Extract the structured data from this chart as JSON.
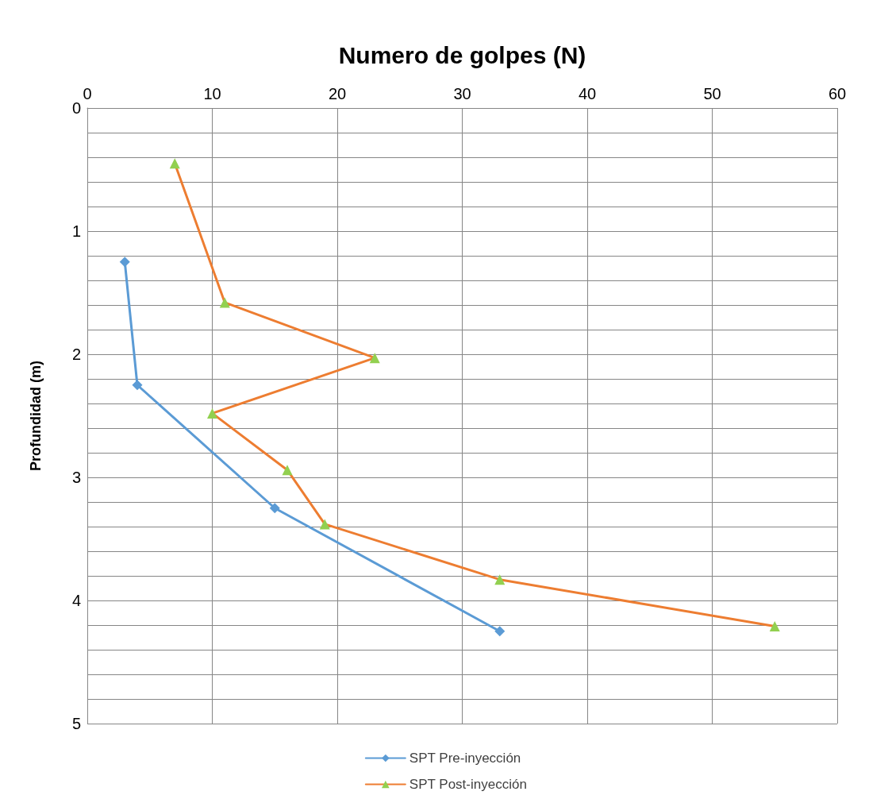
{
  "chart_data": {
    "type": "line",
    "xlabel": "Numero de golpes (N)",
    "ylabel": "Profundidad (m)",
    "xlim": [
      0,
      60
    ],
    "xticks": [
      0,
      10,
      20,
      30,
      40,
      50,
      60
    ],
    "ylim": [
      5,
      0
    ],
    "yticks": [
      0,
      {
        "value": 0.2,
        "label": null
      },
      {
        "value": 0.4,
        "label": null
      },
      {
        "value": 0.6,
        "label": null
      },
      {
        "value": 0.8,
        "label": null
      },
      1,
      {
        "value": 1.2,
        "label": null
      },
      {
        "value": 1.4,
        "label": null
      },
      {
        "value": 1.6,
        "label": null
      },
      {
        "value": 1.8,
        "label": null
      },
      2,
      {
        "value": 2.2,
        "label": null
      },
      {
        "value": 2.4,
        "label": null
      },
      {
        "value": 2.6,
        "label": null
      },
      {
        "value": 2.8,
        "label": null
      },
      3,
      {
        "value": 3.2,
        "label": null
      },
      {
        "value": 3.4,
        "label": null
      },
      {
        "value": 3.6,
        "label": null
      },
      {
        "value": 3.8,
        "label": null
      },
      4,
      {
        "value": 4.2,
        "label": null
      },
      {
        "value": 4.4,
        "label": null
      },
      {
        "value": 4.6,
        "label": null
      },
      {
        "value": 4.8,
        "label": null
      },
      5
    ],
    "grid": true,
    "legend": "bottom",
    "line_style": "solid",
    "series": [
      {
        "name": "SPT Pre-inyección",
        "color": "#5b9bd5",
        "marker": "diamond",
        "x": [
          3,
          4,
          15,
          33
        ],
        "values": [
          1.25,
          2.25,
          3.25,
          4.25
        ]
      },
      {
        "name": "SPT Post-inyección",
        "color": "#ed7d31",
        "marker": "triangle",
        "colors": [
          "#92d050",
          "#92d050",
          "#92d050",
          "#92d050",
          "#92d050",
          "#92d050",
          "#92d050",
          "#92d050"
        ],
        "x": [
          7,
          11,
          23,
          10,
          16,
          19,
          33,
          55
        ],
        "values": [
          0.45,
          1.58,
          2.03,
          2.48,
          2.94,
          3.38,
          3.83,
          4.21
        ]
      }
    ]
  }
}
